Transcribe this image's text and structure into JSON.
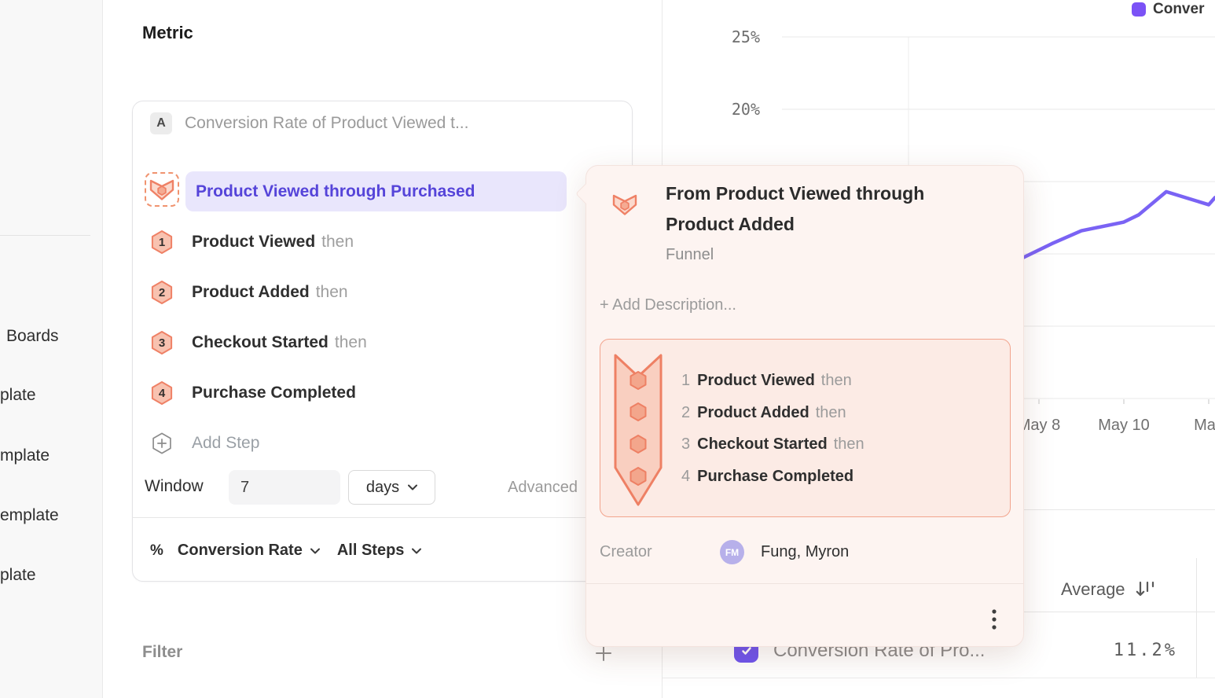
{
  "sidebar": {
    "items": [
      {
        "label": "Boards"
      },
      {
        "label": "plate"
      },
      {
        "label": "mplate"
      },
      {
        "label": "emplate"
      },
      {
        "label": "plate"
      }
    ]
  },
  "metric_panel": {
    "title": "Metric",
    "series_badge": "A",
    "series_title": "Conversion Rate of Product Viewed t...",
    "funnel_pill": "Product Viewed through Purchased",
    "steps": [
      {
        "n": "1",
        "name": "Product Viewed",
        "conj": "then"
      },
      {
        "n": "2",
        "name": "Product Added",
        "conj": "then"
      },
      {
        "n": "3",
        "name": "Checkout Started",
        "conj": "then"
      },
      {
        "n": "4",
        "name": "Purchase Completed",
        "conj": ""
      }
    ],
    "add_step": "Add Step",
    "window_label": "Window",
    "window_value": "7",
    "window_unit": "days",
    "advanced": "Advanced",
    "measure_symbol": "%",
    "measure": "Conversion Rate",
    "steps_scope": "All Steps",
    "filter_title": "Filter"
  },
  "popover": {
    "title": "From Product Viewed through Product Added",
    "subtitle": "Funnel",
    "add_description": "+ Add Description...",
    "creator_label": "Creator",
    "creator_initials": "FM",
    "creator_name": "Fung, Myron"
  },
  "table": {
    "column": "Average",
    "row_label": "Conversion Rate of Pro...",
    "row_value": "11.2%"
  },
  "chart_data": {
    "type": "line",
    "title": "",
    "legend": [
      {
        "label": "Conver",
        "color": "#7b52f6"
      }
    ],
    "ylim": [
      0,
      25
    ],
    "grid": true,
    "grid_values": [
      25,
      20,
      15,
      10,
      5,
      0
    ],
    "y_ticks": [
      {
        "label": "25%",
        "value": 25
      },
      {
        "label": "20%",
        "value": 20
      }
    ],
    "x_ticks": [
      {
        "label": "May 8",
        "offset": 0
      },
      {
        "label": "May 10",
        "offset": 2
      },
      {
        "label": "May",
        "offset": 4
      }
    ],
    "series": [
      {
        "name": "Conversion Rate of Pro...",
        "color": "#7a63f4",
        "points": [
          {
            "day_offset": -0.4,
            "value": 9.7
          },
          {
            "day_offset": 0.3,
            "value": 10.7
          },
          {
            "day_offset": 1,
            "value": 11.6
          },
          {
            "day_offset": 2,
            "value": 12.2
          },
          {
            "day_offset": 2.35,
            "value": 12.7
          },
          {
            "day_offset": 3,
            "value": 14.3
          },
          {
            "day_offset": 4,
            "value": 13.4
          },
          {
            "day_offset": 4.15,
            "value": 13.9
          }
        ]
      }
    ]
  },
  "colors": {
    "accent_purple": "#6e55ef",
    "funnel_coral": "#ef8166",
    "pill_lavender": "#e9e6fc"
  }
}
